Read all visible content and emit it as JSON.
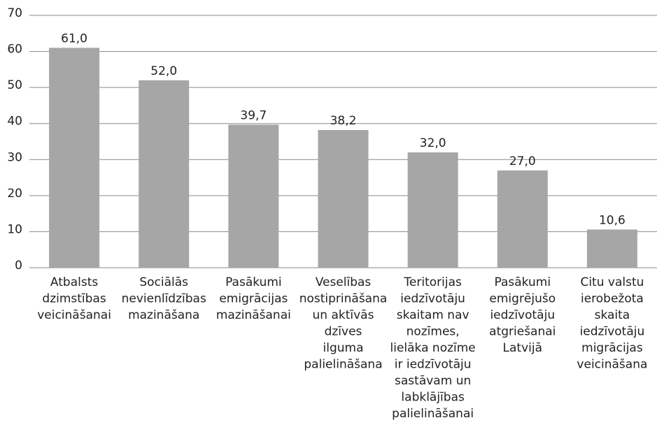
{
  "chart_data": {
    "type": "bar",
    "categories": [
      [
        "Atbalsts",
        "dzimstības",
        "veicināšanai"
      ],
      [
        "Sociālās",
        "nevienlīdzības",
        "mazināšana"
      ],
      [
        "Pasākumi",
        "emigrācijas",
        "mazināšanai"
      ],
      [
        "Veselības",
        "nostiprināšana",
        "un aktīvās",
        "dzīves",
        "ilguma",
        "palielināšana"
      ],
      [
        "Teritorijas",
        "iedzīvotāju",
        "skaitam nav",
        "nozīmes,",
        "lielāka nozīme",
        "ir iedzīvotāju",
        "sastāvam un",
        "labklājības",
        "palielināšanai"
      ],
      [
        "Pasākumi",
        "emigrējušo",
        "iedzīvotāju",
        "atgriešanai",
        "Latvijā"
      ],
      [
        "Citu valstu",
        "ierobežota",
        "skaita",
        "iedzīvotāju",
        "migrācijas",
        "veicināšana"
      ]
    ],
    "values": [
      61.0,
      52.0,
      39.7,
      38.2,
      32.0,
      27.0,
      10.6
    ],
    "value_labels": [
      "61,0",
      "52,0",
      "39,7",
      "38,2",
      "32,0",
      "27,0",
      "10,6"
    ],
    "color": "#a6a6a6",
    "ylim": [
      0,
      70
    ],
    "yticks": [
      0,
      10,
      20,
      30,
      40,
      50,
      60,
      70
    ],
    "grid": true
  }
}
